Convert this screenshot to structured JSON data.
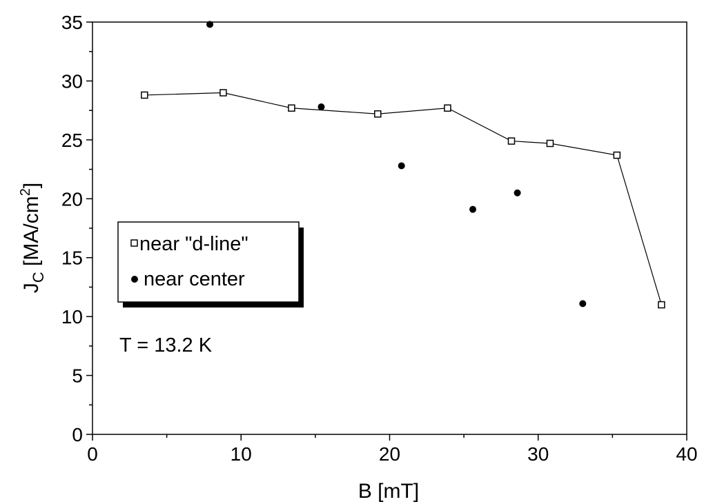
{
  "chart_data": {
    "type": "scatter",
    "xlabel": "B [mT]",
    "ylabel": {
      "main": "J",
      "sub": "C",
      "unit_open": " [MA/cm",
      "unit_sup": "2",
      "unit_close": "]"
    },
    "xlim": [
      0,
      40
    ],
    "ylim": [
      0,
      35
    ],
    "x_ticks": [
      0,
      10,
      20,
      30,
      40
    ],
    "y_ticks": [
      0,
      5,
      10,
      15,
      20,
      25,
      30,
      35
    ],
    "grid": false,
    "legend_position": "left-center",
    "series": [
      {
        "name": "near \"d-line\"",
        "marker": "open-square",
        "line": true,
        "color": "#000000",
        "points": [
          {
            "x": 3.5,
            "y": 28.8
          },
          {
            "x": 8.8,
            "y": 29.0
          },
          {
            "x": 13.4,
            "y": 27.7
          },
          {
            "x": 19.2,
            "y": 27.2
          },
          {
            "x": 23.9,
            "y": 27.7
          },
          {
            "x": 28.2,
            "y": 24.9
          },
          {
            "x": 30.8,
            "y": 24.7
          },
          {
            "x": 35.3,
            "y": 23.7
          },
          {
            "x": 38.3,
            "y": 11.0
          }
        ]
      },
      {
        "name": "near center",
        "marker": "filled-circle",
        "line": false,
        "color": "#000000",
        "points": [
          {
            "x": 7.9,
            "y": 34.8
          },
          {
            "x": 15.4,
            "y": 27.8
          },
          {
            "x": 20.8,
            "y": 22.8
          },
          {
            "x": 25.6,
            "y": 19.1
          },
          {
            "x": 28.6,
            "y": 20.5
          },
          {
            "x": 33.0,
            "y": 11.1
          }
        ]
      }
    ],
    "annotations": [
      {
        "text": "T = 13.2 K"
      }
    ]
  }
}
